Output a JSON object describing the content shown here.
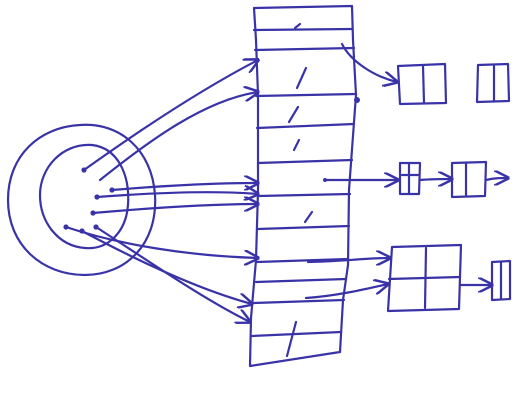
{
  "diagram": {
    "ink_color": "#3a33a8",
    "paper_color": "#ffffff",
    "style": "hand-drawn sketch",
    "key_set": {
      "point_count": 7
    },
    "hash_table": {
      "slot_count": 13,
      "filled_slots": 7
    },
    "chains": [
      {
        "row": "top",
        "node_count": 2
      },
      {
        "row": "middle",
        "node_count": 2
      },
      {
        "row": "bottom",
        "node_count": 2
      }
    ]
  }
}
